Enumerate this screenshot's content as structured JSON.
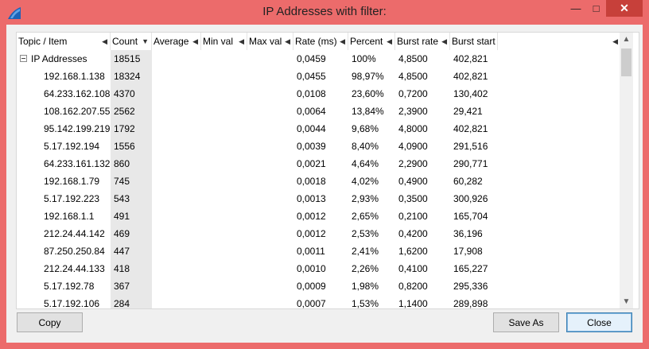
{
  "window": {
    "title": "IP Addresses with filter:",
    "accent": "#ec6b6b",
    "controls": {
      "minimize": "—",
      "maximize": "□",
      "close": "✕"
    }
  },
  "columns": [
    {
      "label": "Topic / Item",
      "sort": "none"
    },
    {
      "label": "Count",
      "sort": "descending"
    },
    {
      "label": "Average",
      "sort": "none"
    },
    {
      "label": "Min val",
      "sort": "none"
    },
    {
      "label": "Max val",
      "sort": "none"
    },
    {
      "label": "Rate (ms)",
      "sort": "none"
    },
    {
      "label": "Percent",
      "sort": "none"
    },
    {
      "label": "Burst rate",
      "sort": "none"
    },
    {
      "label": "Burst start",
      "sort": "none"
    }
  ],
  "tree": {
    "root": {
      "item": "IP Addresses",
      "count": "18515",
      "average": "",
      "min": "",
      "max": "",
      "rate": "0,0459",
      "percent": "100%",
      "burst_rate": "4,8500",
      "burst_start": "402,821",
      "expanded": true
    },
    "children": [
      {
        "item": "192.168.1.138",
        "count": "18324",
        "rate": "0,0455",
        "percent": "98,97%",
        "burst_rate": "4,8500",
        "burst_start": "402,821"
      },
      {
        "item": "64.233.162.108",
        "count": "4370",
        "rate": "0,0108",
        "percent": "23,60%",
        "burst_rate": "0,7200",
        "burst_start": "130,402"
      },
      {
        "item": "108.162.207.55",
        "count": "2562",
        "rate": "0,0064",
        "percent": "13,84%",
        "burst_rate": "2,3900",
        "burst_start": "29,421"
      },
      {
        "item": "95.142.199.219",
        "count": "1792",
        "rate": "0,0044",
        "percent": "9,68%",
        "burst_rate": "4,8000",
        "burst_start": "402,821"
      },
      {
        "item": "5.17.192.194",
        "count": "1556",
        "rate": "0,0039",
        "percent": "8,40%",
        "burst_rate": "4,0900",
        "burst_start": "291,516"
      },
      {
        "item": "64.233.161.132",
        "count": "860",
        "rate": "0,0021",
        "percent": "4,64%",
        "burst_rate": "2,2900",
        "burst_start": "290,771"
      },
      {
        "item": "192.168.1.79",
        "count": "745",
        "rate": "0,0018",
        "percent": "4,02%",
        "burst_rate": "0,4900",
        "burst_start": "60,282"
      },
      {
        "item": "5.17.192.223",
        "count": "543",
        "rate": "0,0013",
        "percent": "2,93%",
        "burst_rate": "0,3500",
        "burst_start": "300,926"
      },
      {
        "item": "192.168.1.1",
        "count": "491",
        "rate": "0,0012",
        "percent": "2,65%",
        "burst_rate": "0,2100",
        "burst_start": "165,704"
      },
      {
        "item": "212.24.44.142",
        "count": "469",
        "rate": "0,0012",
        "percent": "2,53%",
        "burst_rate": "0,4200",
        "burst_start": "36,196"
      },
      {
        "item": "87.250.250.84",
        "count": "447",
        "rate": "0,0011",
        "percent": "2,41%",
        "burst_rate": "1,6200",
        "burst_start": "17,908"
      },
      {
        "item": "212.24.44.133",
        "count": "418",
        "rate": "0,0010",
        "percent": "2,26%",
        "burst_rate": "0,4100",
        "burst_start": "165,227"
      },
      {
        "item": "5.17.192.78",
        "count": "367",
        "rate": "0,0009",
        "percent": "1,98%",
        "burst_rate": "0,8200",
        "burst_start": "295,336"
      },
      {
        "item": "5.17.192.106",
        "count": "284",
        "rate": "0,0007",
        "percent": "1,53%",
        "burst_rate": "1,1400",
        "burst_start": "289,898"
      }
    ]
  },
  "buttons": {
    "copy": "Copy",
    "save_as": "Save As",
    "close": "Close",
    "default": "close"
  }
}
